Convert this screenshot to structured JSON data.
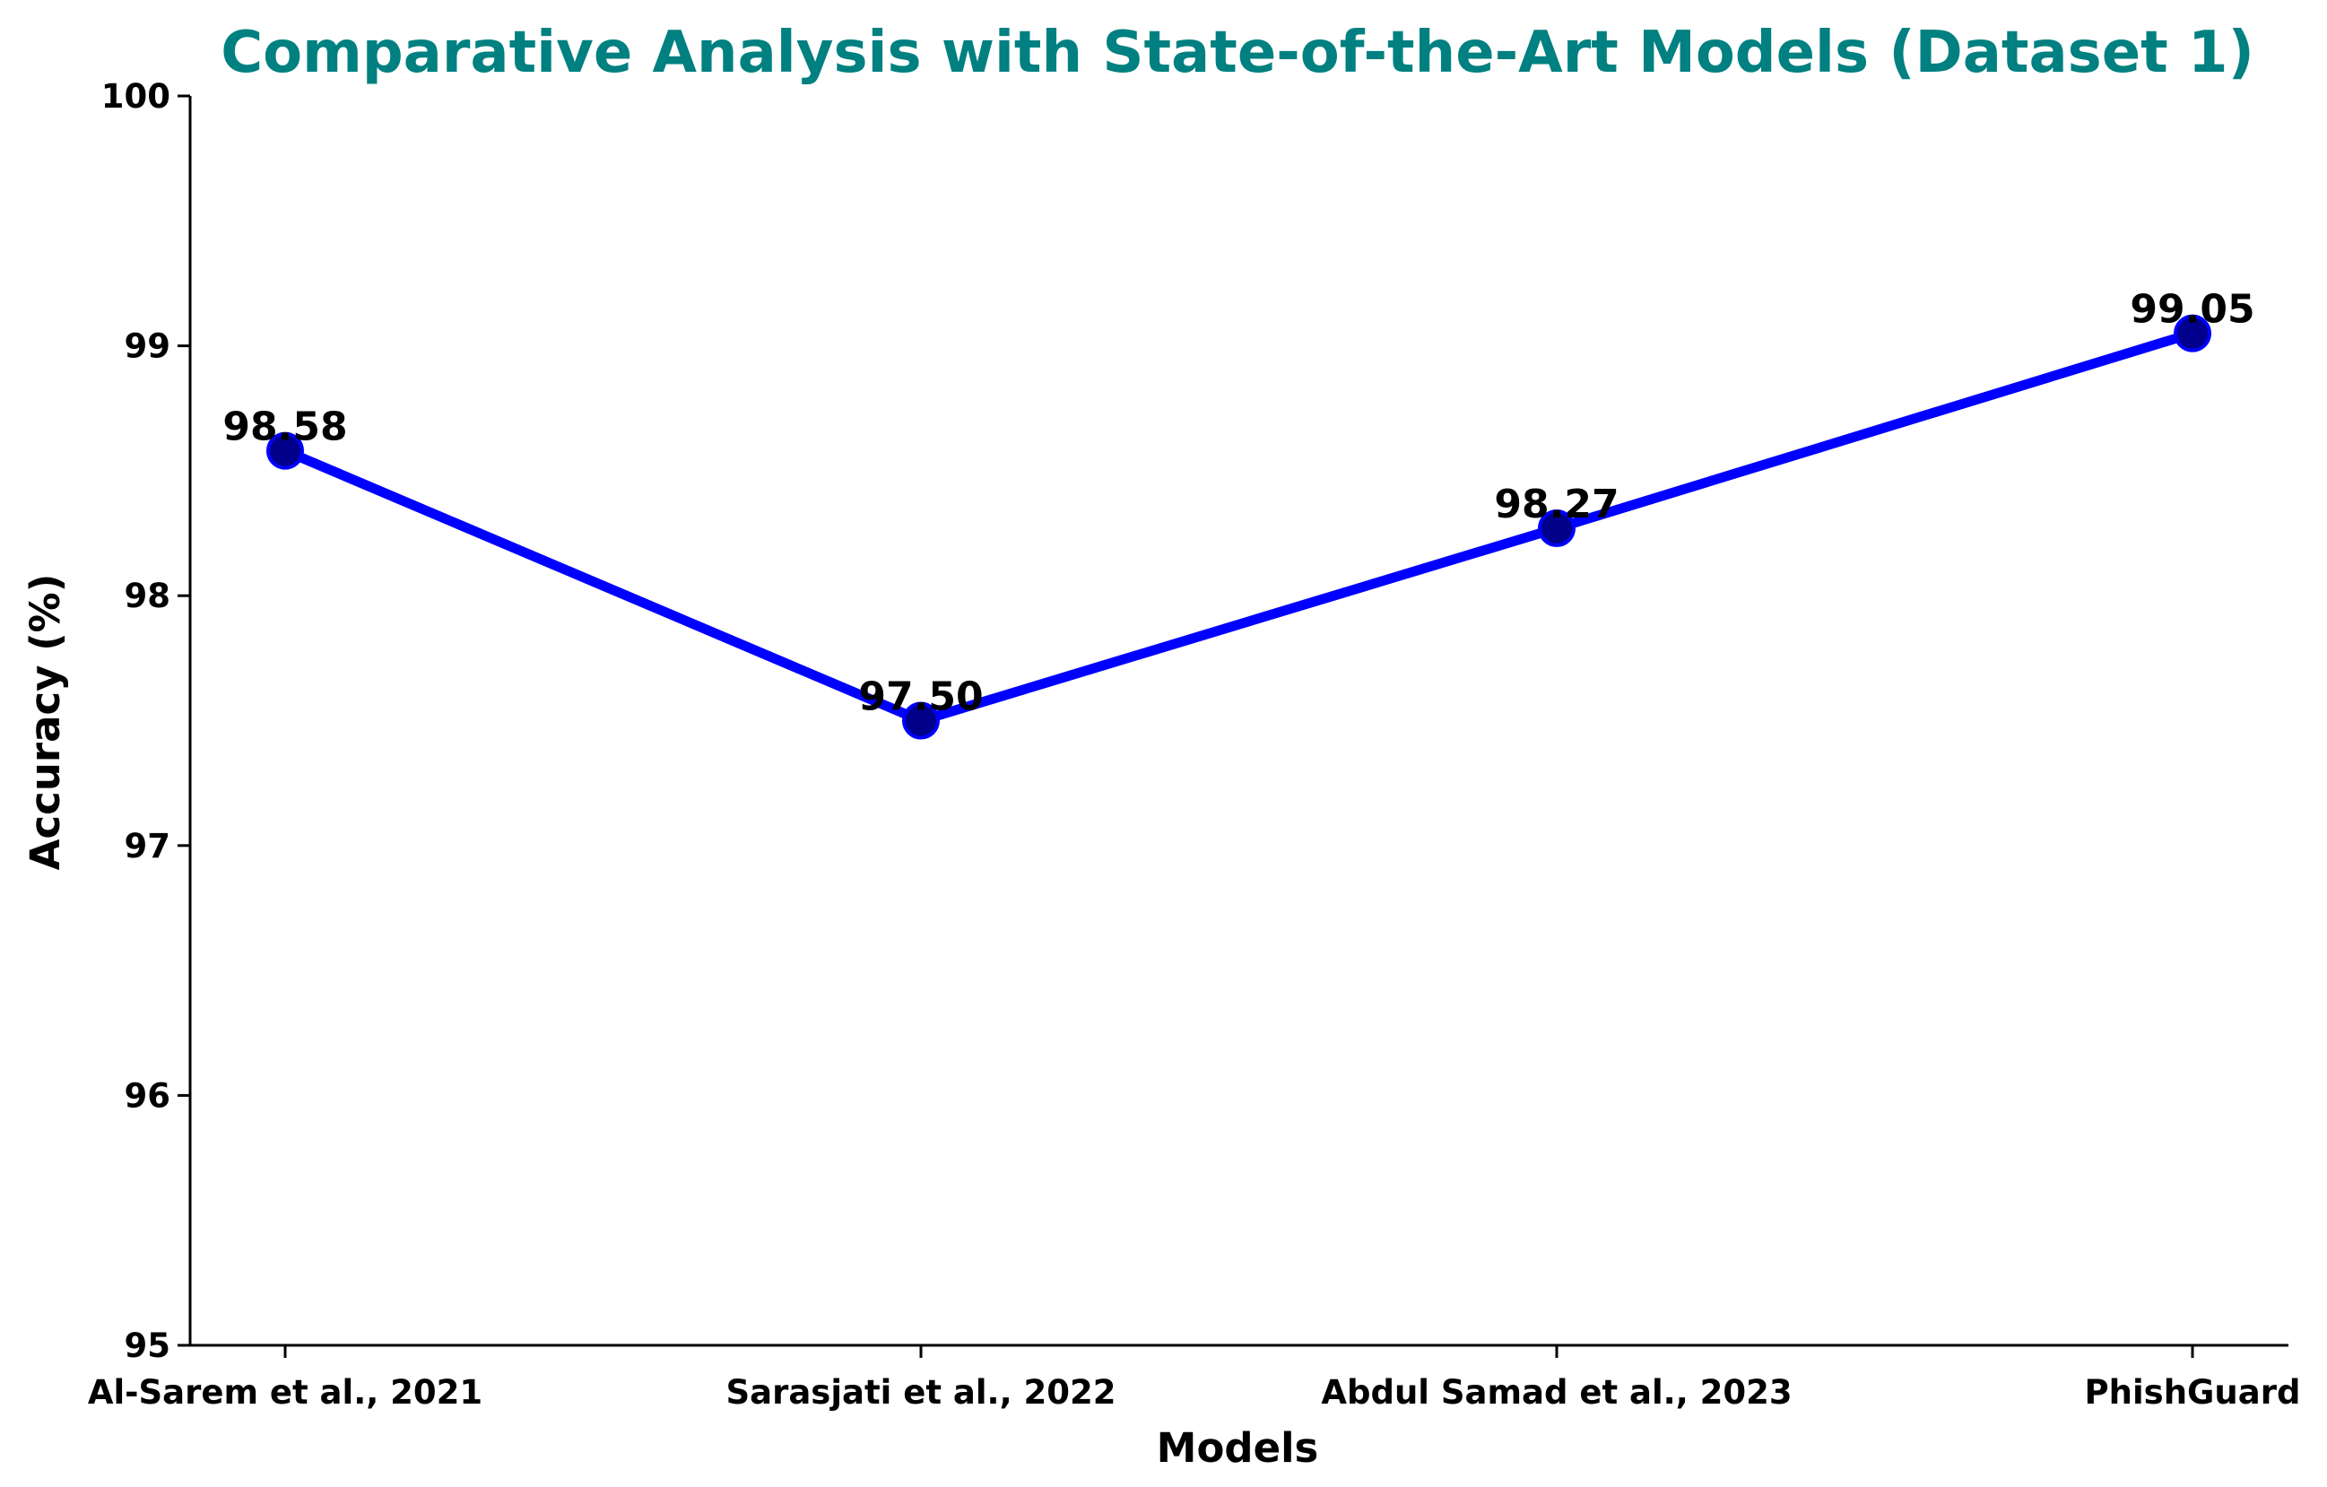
{
  "chart_data": {
    "type": "line",
    "title": "Comparative Analysis with State-of-the-Art Models (Dataset 1)",
    "xlabel": "Models",
    "ylabel": "Accuracy (%)",
    "categories": [
      "Al-Sarem et al., 2021",
      "Sarasjati et al., 2022",
      "Abdul Samad et al., 2023",
      "PhishGuard"
    ],
    "series": [
      {
        "values": [
          98.58,
          97.5,
          98.27,
          99.05
        ],
        "labels": [
          "98.58",
          "97.50",
          "98.27",
          "99.05"
        ]
      }
    ],
    "ylim": [
      95,
      100
    ],
    "yticks": [
      "95",
      "96",
      "97",
      "98",
      "99",
      "100"
    ],
    "grid": false,
    "colors": {
      "title": "#008080",
      "line": "#0000ff",
      "marker": "#00008b",
      "axis": "#000000"
    }
  }
}
